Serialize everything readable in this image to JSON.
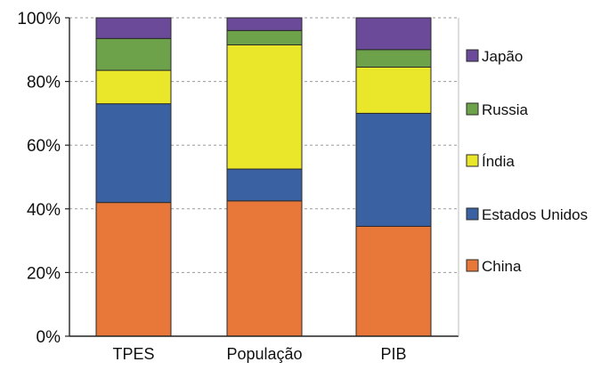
{
  "chart_data": {
    "type": "bar",
    "stacked": true,
    "percent": true,
    "title": "",
    "xlabel": "",
    "ylabel": "",
    "categories": [
      "TPES",
      "População",
      "PIB"
    ],
    "y_ticks": [
      "0%",
      "20%",
      "40%",
      "60%",
      "80%",
      "100%"
    ],
    "ylim": [
      0,
      100
    ],
    "grid": true,
    "legend_position": "right",
    "series": [
      {
        "name": "China",
        "color": "#E8783A",
        "values": [
          42,
          42.5,
          34.5
        ]
      },
      {
        "name": "Estados Unidos",
        "color": "#3A62A3",
        "values": [
          31,
          10,
          35.5
        ]
      },
      {
        "name": "Índia",
        "color": "#EAE62A",
        "values": [
          10.5,
          39,
          14.5
        ]
      },
      {
        "name": "Russia",
        "color": "#6DA24A",
        "values": [
          10,
          4.5,
          5.5
        ]
      },
      {
        "name": "Japão",
        "color": "#6B4A9A",
        "values": [
          6.5,
          4,
          10
        ]
      }
    ]
  }
}
